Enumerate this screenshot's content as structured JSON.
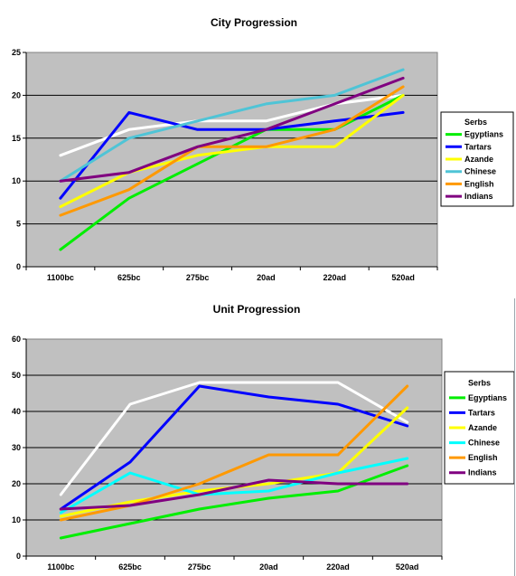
{
  "chart_data": [
    {
      "type": "line",
      "title": "City Progression",
      "categories": [
        "1100bc",
        "625bc",
        "275bc",
        "20ad",
        "220ad",
        "520ad"
      ],
      "ylim": [
        0,
        25
      ],
      "yticks": [
        0,
        5,
        10,
        15,
        20,
        25
      ],
      "grid": true,
      "legend": "right",
      "plot_background": "#c0c0c0",
      "series": [
        {
          "name": "Serbs",
          "color": "#ffffff",
          "values": [
            13,
            16,
            17,
            17,
            19,
            20
          ]
        },
        {
          "name": "Egyptians",
          "color": "#00ee00",
          "values": [
            2,
            8,
            12,
            16,
            16,
            20
          ]
        },
        {
          "name": "Tartars",
          "color": "#0000ff",
          "values": [
            8,
            18,
            16,
            16,
            17,
            18
          ]
        },
        {
          "name": "Azande",
          "color": "#ffff00",
          "values": [
            7,
            11,
            13,
            14,
            14,
            20
          ]
        },
        {
          "name": "Chinese",
          "color": "#4fc4d6",
          "values": [
            10,
            15,
            17,
            19,
            20,
            23
          ]
        },
        {
          "name": "English",
          "color": "#ff9900",
          "values": [
            6,
            9,
            14,
            14,
            16,
            21
          ]
        },
        {
          "name": "Indians",
          "color": "#800080",
          "values": [
            10,
            11,
            14,
            16,
            19,
            22
          ]
        }
      ]
    },
    {
      "type": "line",
      "title": "Unit Progression",
      "categories": [
        "1100bc",
        "625bc",
        "275bc",
        "20ad",
        "220ad",
        "520ad"
      ],
      "ylim": [
        0,
        60
      ],
      "yticks": [
        0,
        10,
        20,
        30,
        40,
        50,
        60
      ],
      "grid": true,
      "legend": "right",
      "plot_background": "#c0c0c0",
      "series": [
        {
          "name": "Serbs",
          "color": "#ffffff",
          "values": [
            17,
            42,
            48,
            48,
            48,
            37
          ]
        },
        {
          "name": "Egyptians",
          "color": "#00ee00",
          "values": [
            5,
            9,
            13,
            16,
            18,
            25
          ]
        },
        {
          "name": "Tartars",
          "color": "#0000ff",
          "values": [
            13,
            26,
            47,
            44,
            42,
            36
          ]
        },
        {
          "name": "Azande",
          "color": "#ffff00",
          "values": [
            11,
            15,
            18,
            20,
            23,
            41
          ]
        },
        {
          "name": "Chinese",
          "color": "#00ffff",
          "values": [
            12,
            23,
            17,
            18,
            23,
            27
          ]
        },
        {
          "name": "English",
          "color": "#ff9900",
          "values": [
            10,
            14,
            20,
            28,
            28,
            47
          ]
        },
        {
          "name": "Indians",
          "color": "#800080",
          "values": [
            13,
            14,
            17,
            21,
            20,
            20
          ]
        }
      ]
    }
  ]
}
